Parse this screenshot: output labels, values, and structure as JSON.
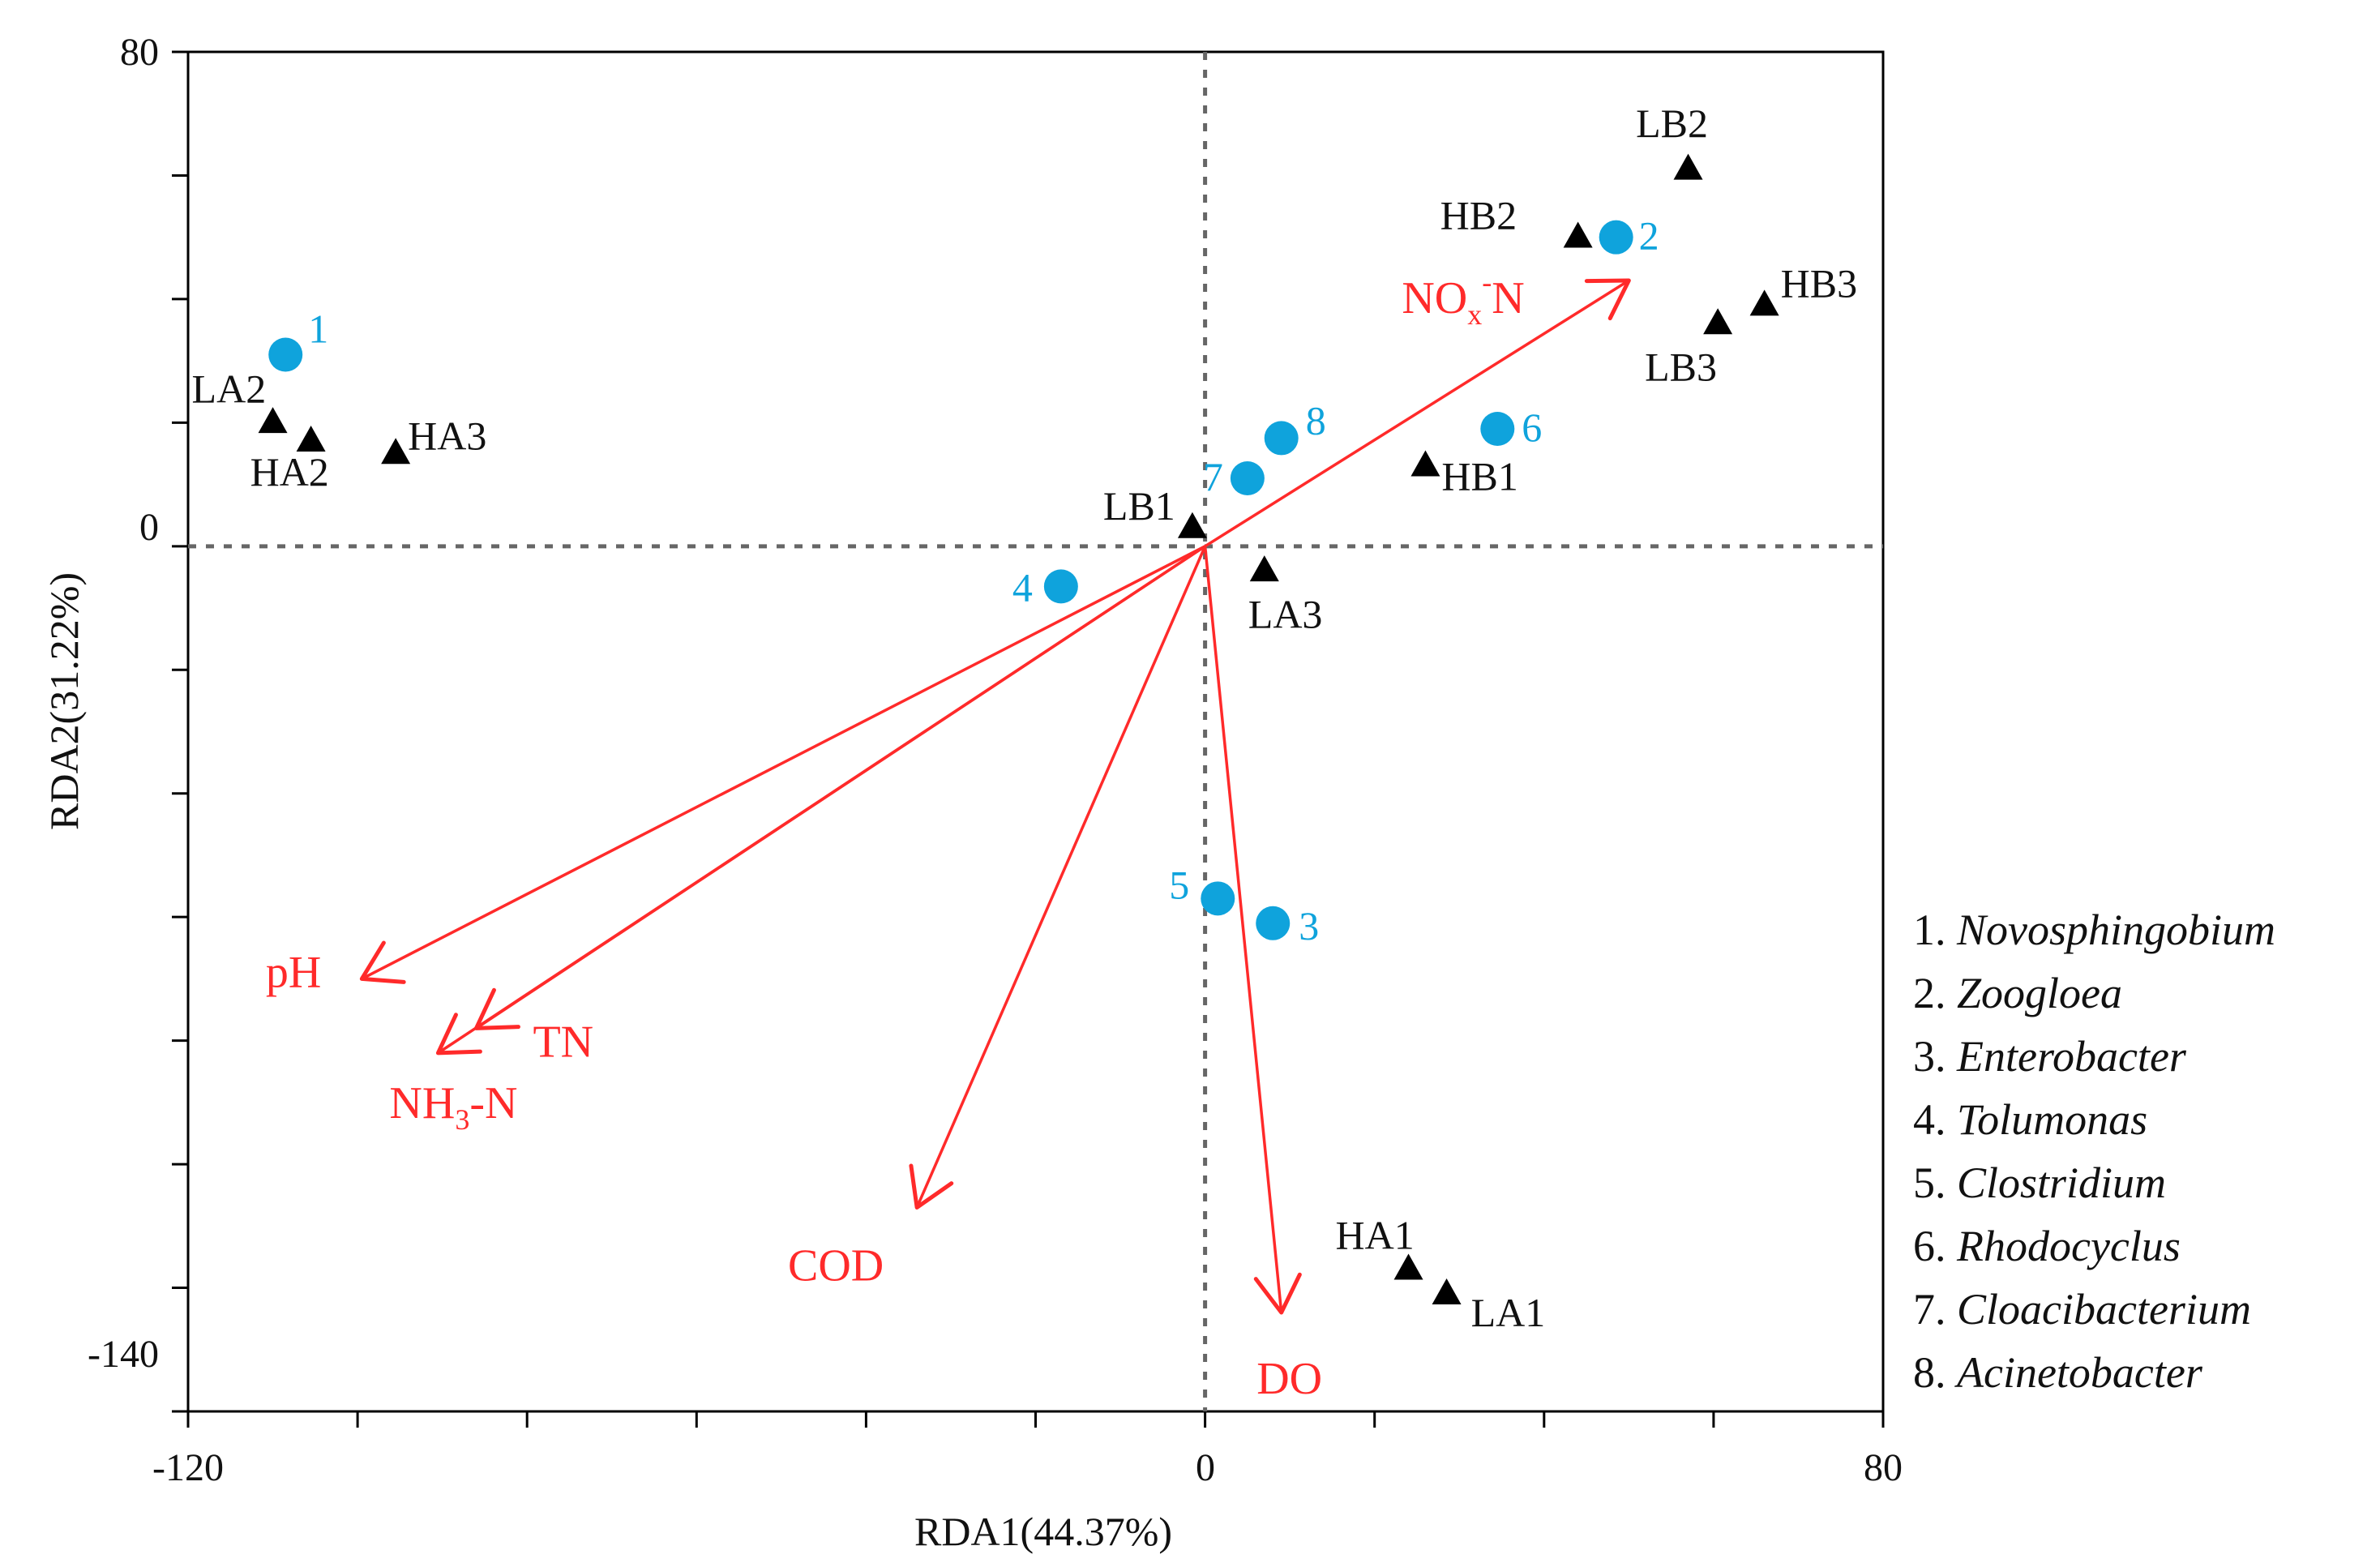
{
  "chart_data": {
    "type": "scatter",
    "title": "",
    "xlabel": "RDA1(44.37%)",
    "ylabel": "RDA2(31.22%)",
    "xlim": [
      -120,
      80
    ],
    "ylim": [
      -140,
      80
    ],
    "x_tick_labels": [
      "-120",
      "0",
      "80"
    ],
    "y_tick_labels": [
      "80",
      "0",
      "-140"
    ],
    "minor_x_ticks": [
      -100,
      -80,
      -60,
      -40,
      -20,
      20,
      40,
      60
    ],
    "minor_y_ticks": [
      60,
      40,
      20,
      -20,
      -40,
      -60,
      -80,
      -100,
      -120
    ],
    "grid": false,
    "reference_lines": {
      "x": 0,
      "y": 0
    },
    "series": [
      {
        "name": "Samples",
        "marker": "triangle",
        "color": "#000000",
        "points": [
          {
            "label": "LB2",
            "x": 57,
            "y": 61
          },
          {
            "label": "HB2",
            "x": 44,
            "y": 50
          },
          {
            "label": "HB3",
            "x": 66,
            "y": 39
          },
          {
            "label": "LB3",
            "x": 60.5,
            "y": 36
          },
          {
            "label": "LA2",
            "x": -110,
            "y": 20
          },
          {
            "label": "HA2",
            "x": -105.5,
            "y": 17
          },
          {
            "label": "HA3",
            "x": -95.5,
            "y": 15
          },
          {
            "label": "HB1",
            "x": 26,
            "y": 13
          },
          {
            "label": "LB1",
            "x": -1.5,
            "y": 3
          },
          {
            "label": "LA3",
            "x": 7,
            "y": -4
          },
          {
            "label": "HA1",
            "x": 24,
            "y": -117
          },
          {
            "label": "LA1",
            "x": 28.5,
            "y": -121
          }
        ]
      },
      {
        "name": "Genera",
        "marker": "circle",
        "color": "#0fa3dc",
        "points": [
          {
            "label": "1",
            "x": -108.5,
            "y": 31
          },
          {
            "label": "2",
            "x": 48.5,
            "y": 50
          },
          {
            "label": "3",
            "x": 8,
            "y": -61
          },
          {
            "label": "4",
            "x": -17,
            "y": -6.5
          },
          {
            "label": "5",
            "x": 1.5,
            "y": -57
          },
          {
            "label": "6",
            "x": 34.5,
            "y": 19
          },
          {
            "label": "7",
            "x": 5,
            "y": 11
          },
          {
            "label": "8",
            "x": 9,
            "y": 17.5
          }
        ]
      }
    ],
    "vectors": {
      "color": "#ff2a2a",
      "items": [
        {
          "label": "pH",
          "x": -99.5,
          "y": -70
        },
        {
          "label": "TN",
          "x": -86,
          "y": -78
        },
        {
          "label": "NH3-N",
          "x": -90.5,
          "y": -82
        },
        {
          "label": "COD",
          "x": -34,
          "y": -107
        },
        {
          "label": "DO",
          "x": 9,
          "y": -124
        },
        {
          "label": "NOx-N",
          "x": 50,
          "y": 43
        }
      ]
    },
    "legend": {
      "position": "right",
      "items": [
        {
          "number": "1.",
          "name": "Novosphingobium"
        },
        {
          "number": "2.",
          "name": "Zoogloea"
        },
        {
          "number": "3.",
          "name": "Enterobacter"
        },
        {
          "number": "4.",
          "name": "Tolumonas"
        },
        {
          "number": "5.",
          "name": "Clostridium"
        },
        {
          "number": "6.",
          "name": "Rhodocyclus"
        },
        {
          "number": "7.",
          "name": "Cloacibacterium"
        },
        {
          "number": "8.",
          "name": "Acinetobacter"
        }
      ]
    }
  }
}
